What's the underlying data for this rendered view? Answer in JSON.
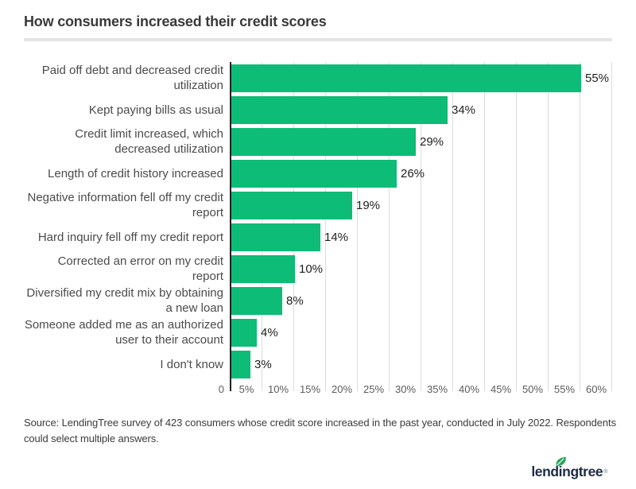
{
  "header": {
    "title": "How consumers increased their credit scores"
  },
  "chart_data": {
    "type": "bar",
    "orientation": "horizontal",
    "title": "How consumers increased their credit scores",
    "categories": [
      "Paid off debt and decreased credit utilization",
      "Kept paying bills as usual",
      "Credit limit increased, which decreased utilization",
      "Length of credit history increased",
      "Negative information fell off my credit report",
      "Hard inquiry fell off my credit report",
      "Corrected an error on my credit report",
      "Diversified my credit mix by obtaining a new loan",
      "Someone added me as an authorized user to their account",
      "I don't know"
    ],
    "values": [
      55,
      34,
      29,
      26,
      19,
      14,
      10,
      8,
      4,
      3
    ],
    "value_labels": [
      "55%",
      "34%",
      "29%",
      "26%",
      "19%",
      "14%",
      "10%",
      "8%",
      "4%",
      "3%"
    ],
    "xlabel": "",
    "ylabel": "",
    "x_axis": {
      "min": 0,
      "max": 60,
      "tick_step": 5,
      "ticks": [
        "0",
        "5%",
        "10%",
        "15%",
        "20%",
        "25%",
        "30%",
        "35%",
        "40%",
        "45%",
        "50%",
        "55%",
        "60%"
      ],
      "grid": true,
      "grid_color": "#dcdcdc"
    },
    "legend": "none",
    "bar_color": "#0cbc77"
  },
  "footer": {
    "source_text": "Source: LendingTree survey of 423 consumers whose credit score increased in the past year, conducted in July 2022. Respondents could select multiple answers.",
    "logo": {
      "text": "lendingtree",
      "trademark": "®"
    }
  },
  "colors": {
    "bar_green": "#0cbc77",
    "title_text": "#3a3a3a",
    "logo_navy": "#1b2b47",
    "leaf_green": "#2ca55c",
    "gridline": "#dcdcdc",
    "divider": "#e4e4e4"
  }
}
